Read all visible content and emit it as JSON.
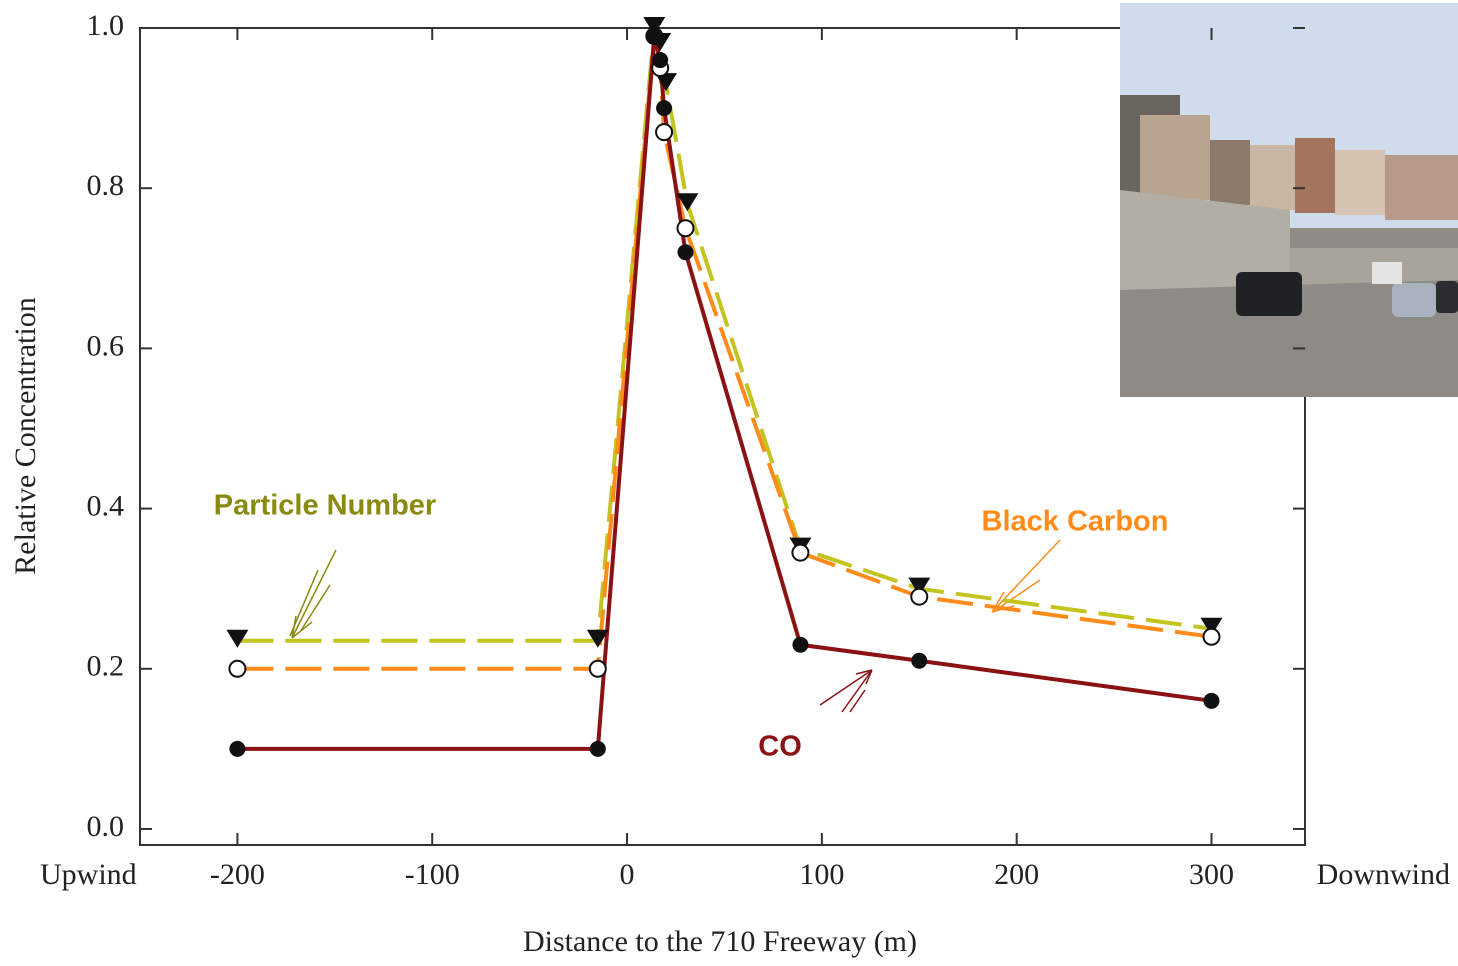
{
  "chart_data": {
    "type": "line",
    "x_label": "Distance to the 710 Freeway (m)",
    "y_label": "Relative Concentration",
    "xlim": [
      -250,
      348
    ],
    "ylim": [
      -0.02,
      1.0
    ],
    "xticks": [
      -200,
      -100,
      0,
      100,
      200,
      300
    ],
    "yticks": [
      {
        "value": 0,
        "label": "0.0"
      },
      0.2,
      0.4,
      0.6,
      0.8,
      {
        "value": 1,
        "label": "1.0"
      }
    ],
    "x_end_labels": [
      "Upwind",
      "Downwind"
    ],
    "grid": false,
    "series": [
      {
        "name": "Particle Number",
        "color": "#c4c420",
        "dashed": true,
        "marker": "triangle-down",
        "x": [
          -200,
          -15,
          14,
          17,
          20,
          31,
          89,
          150,
          300
        ],
        "values": [
          0.235,
          0.235,
          1.0,
          0.98,
          0.93,
          0.78,
          0.35,
          0.3,
          0.25
        ]
      },
      {
        "name": "Black Carbon",
        "color": "#ff8c1a",
        "dashed": true,
        "marker": "circle-open",
        "x": [
          -200,
          -15,
          14,
          17,
          19,
          30,
          89,
          150,
          300
        ],
        "values": [
          0.2,
          0.2,
          0.99,
          0.95,
          0.87,
          0.75,
          0.345,
          0.29,
          0.24
        ]
      },
      {
        "name": "CO",
        "color": "#8b1212",
        "dashed": false,
        "marker": "circle-filled",
        "x": [
          -200,
          -15,
          14,
          17,
          19,
          30,
          89,
          150,
          300
        ],
        "values": [
          0.1,
          0.1,
          0.99,
          0.96,
          0.9,
          0.72,
          0.23,
          0.21,
          0.16
        ]
      }
    ]
  }
}
